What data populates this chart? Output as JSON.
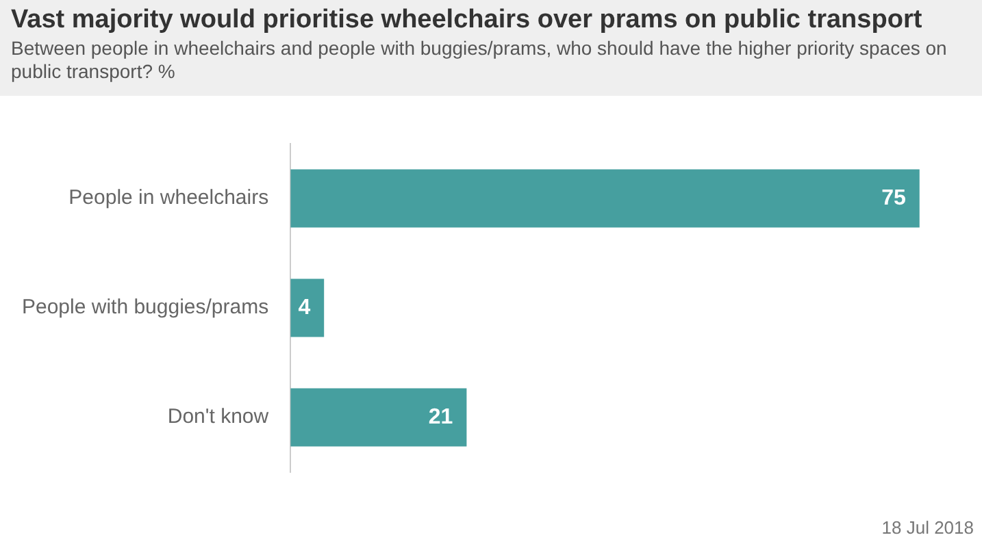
{
  "chart_data": {
    "type": "bar",
    "orientation": "horizontal",
    "title": "Vast majority would prioritise wheelchairs over prams on public transport",
    "subtitle": "Between people in wheelchairs and people with buggies/prams, who should have the higher priority spaces on public transport? %",
    "categories": [
      "People in wheelchairs",
      "People with buggies/prams",
      "Don't know"
    ],
    "values": [
      75,
      4,
      21
    ],
    "color": "#469f9f",
    "data_labels": true,
    "legend": false,
    "annotations": [
      "18 Jul 2018"
    ]
  }
}
